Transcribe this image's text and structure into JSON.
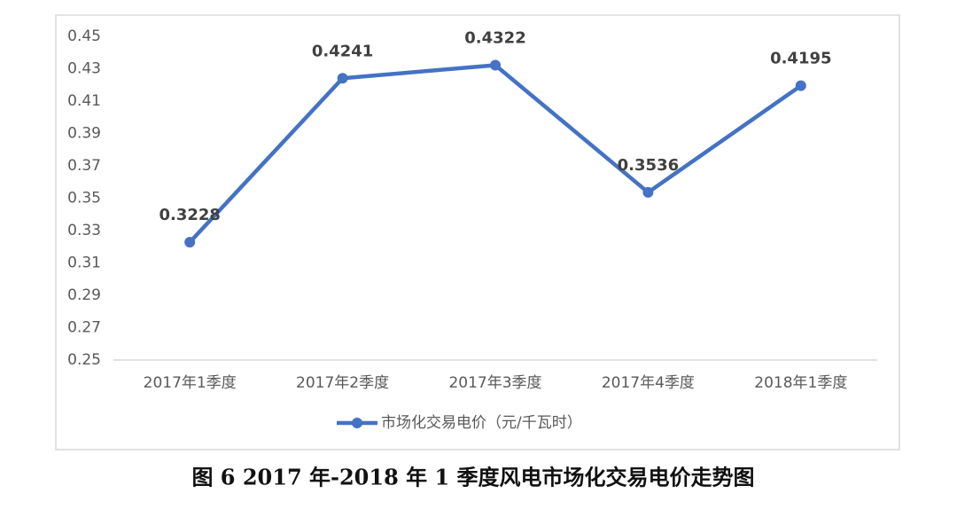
{
  "chart_data": {
    "type": "line",
    "title": "图 6 2017 年-2018 年 1 季度风电市场化交易电价走势图",
    "categories": [
      "2017年1季度",
      "2017年2季度",
      "2017年3季度",
      "2017年4季度",
      "2018年1季度"
    ],
    "series": [
      {
        "name": "市场化交易电价（元/千瓦时）",
        "color": "#4472c4",
        "values": [
          0.3228,
          0.4241,
          0.4322,
          0.3536,
          0.4195
        ]
      }
    ],
    "ylim": [
      0.25,
      0.45
    ],
    "yticks": [
      0.25,
      0.27,
      0.29,
      0.31,
      0.33,
      0.35,
      0.37,
      0.39,
      0.41,
      0.43,
      0.45
    ],
    "grid": false,
    "legend": "bottom"
  }
}
